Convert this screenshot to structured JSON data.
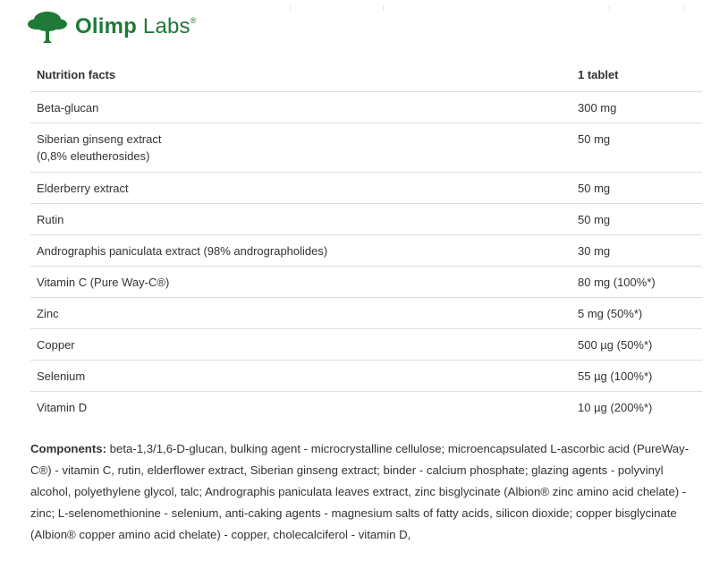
{
  "brand": {
    "name_bold": "Olimp",
    "name_rest": "Labs",
    "registered": "®",
    "color": "#1e7a36"
  },
  "table": {
    "headers": [
      "Nutrition facts",
      "1 tablet"
    ],
    "rows": [
      {
        "name": "Beta-glucan",
        "value": "300 mg"
      },
      {
        "name": "Siberian ginseng extract",
        "note": "(0,8% eleutherosides)",
        "value": "50 mg"
      },
      {
        "name": "Elderberry extract",
        "value": "50 mg"
      },
      {
        "name": "Rutin",
        "value": "50 mg"
      },
      {
        "name": "Andrographis paniculata extract (98% andrographolides)",
        "value": "30 mg"
      },
      {
        "name": "Vitamin C (Pure Way-C®)",
        "value": "80 mg (100%*)"
      },
      {
        "name": "Zinc",
        "value": "5 mg (50%*)"
      },
      {
        "name": "Copper",
        "value": "500 µg (50%*)"
      },
      {
        "name": "Selenium",
        "value": "55 µg (100%*)"
      },
      {
        "name": "Vitamin D",
        "value": "10 µg (200%*)"
      }
    ]
  },
  "components": {
    "label": "Components:",
    "text": " beta-1,3/1,6-D-glucan, bulking agent - microcrystalline cellulose; microencapsulated L-ascorbic acid (PureWay-C®) - vitamin C, rutin, elderflower extract, Siberian ginseng extract; binder - calcium phosphate; glazing agents - polyvinyl alcohol, polyethylene glycol, talc; Andrographis paniculata leaves extract, zinc bisglycinate (Albion® zinc amino acid chelate) - zinc; L-selenomethionine - selenium, anti-caking agents - magnesium salts of fatty acids, silicon dioxide; copper bisglycinate (Albion® copper amino acid chelate) - copper, cholecalciferol - vitamin D,"
  }
}
